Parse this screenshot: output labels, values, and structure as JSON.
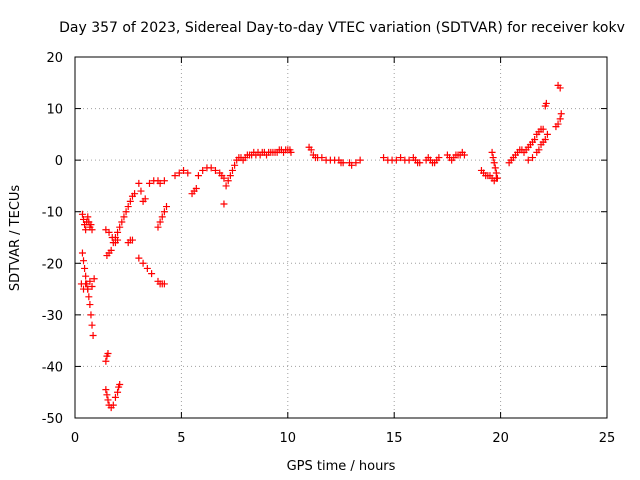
{
  "chart_data": {
    "type": "scatter",
    "title": "Day 357 of 2023, Sidereal Day-to-day VTEC variation (SDTVAR) for receiver kokv",
    "xlabel": "GPS time / hours",
    "ylabel": "SDTVAR / TECUs",
    "xlim": [
      0,
      25
    ],
    "ylim": [
      -50,
      20
    ],
    "xticks": [
      0,
      5,
      10,
      15,
      20,
      25
    ],
    "yticks": [
      -50,
      -40,
      -30,
      -20,
      -10,
      0,
      10,
      20
    ],
    "xtick_labels": [
      "0",
      "5",
      "10",
      "15",
      "20",
      "25"
    ],
    "ytick_labels": [
      "-50",
      "-40",
      "-30",
      "-20",
      "-10",
      "0",
      "10",
      "20"
    ],
    "grid": true,
    "marker": "+",
    "color": "#ff0000",
    "series": [
      {
        "name": "SDTVAR",
        "points": [
          [
            0.35,
            -10.5
          ],
          [
            0.4,
            -11.5
          ],
          [
            0.45,
            -12.5
          ],
          [
            0.5,
            -13.5
          ],
          [
            0.55,
            -12
          ],
          [
            0.6,
            -11
          ],
          [
            0.65,
            -12
          ],
          [
            0.7,
            -13
          ],
          [
            0.75,
            -12.5
          ],
          [
            0.8,
            -13.5
          ],
          [
            0.35,
            -18
          ],
          [
            0.4,
            -19.5
          ],
          [
            0.45,
            -21
          ],
          [
            0.5,
            -22.5
          ],
          [
            0.55,
            -24
          ],
          [
            0.6,
            -25
          ],
          [
            0.65,
            -26.5
          ],
          [
            0.7,
            -28
          ],
          [
            0.75,
            -30
          ],
          [
            0.8,
            -32
          ],
          [
            0.85,
            -34
          ],
          [
            0.3,
            -24
          ],
          [
            0.4,
            -25
          ],
          [
            0.5,
            -24
          ],
          [
            0.6,
            -25
          ],
          [
            0.7,
            -23.5
          ],
          [
            0.8,
            -24.5
          ],
          [
            0.9,
            -23
          ],
          [
            1.45,
            -39
          ],
          [
            1.5,
            -38
          ],
          [
            1.55,
            -37.5
          ],
          [
            1.45,
            -44.5
          ],
          [
            1.5,
            -45.5
          ],
          [
            1.55,
            -46.5
          ],
          [
            1.6,
            -47.5
          ],
          [
            1.7,
            -48
          ],
          [
            1.8,
            -47.5
          ],
          [
            1.9,
            -46
          ],
          [
            2.0,
            -45
          ],
          [
            2.05,
            -44
          ],
          [
            2.1,
            -43.5
          ],
          [
            1.5,
            -18.5
          ],
          [
            1.6,
            -18
          ],
          [
            1.7,
            -17.5
          ],
          [
            1.8,
            -16
          ],
          [
            1.9,
            -15
          ],
          [
            2.0,
            -14
          ],
          [
            2.1,
            -13
          ],
          [
            2.2,
            -12
          ],
          [
            2.3,
            -11
          ],
          [
            2.4,
            -10
          ],
          [
            2.5,
            -9
          ],
          [
            2.6,
            -8
          ],
          [
            2.7,
            -7
          ],
          [
            2.8,
            -6.5
          ],
          [
            1.45,
            -13.5
          ],
          [
            1.6,
            -14
          ],
          [
            1.75,
            -15
          ],
          [
            1.9,
            -16
          ],
          [
            2.0,
            -15.5
          ],
          [
            2.5,
            -16
          ],
          [
            2.6,
            -15.5
          ],
          [
            2.7,
            -15.5
          ],
          [
            3.0,
            -19
          ],
          [
            3.2,
            -20
          ],
          [
            3.4,
            -21
          ],
          [
            3.6,
            -22
          ],
          [
            3.0,
            -4.5
          ],
          [
            3.1,
            -6
          ],
          [
            3.2,
            -8
          ],
          [
            3.3,
            -7.5
          ],
          [
            3.5,
            -4.5
          ],
          [
            3.7,
            -4
          ],
          [
            3.9,
            -4
          ],
          [
            4.0,
            -4.5
          ],
          [
            4.2,
            -4
          ],
          [
            3.9,
            -13
          ],
          [
            4.0,
            -12
          ],
          [
            4.1,
            -11
          ],
          [
            4.2,
            -10
          ],
          [
            4.3,
            -9
          ],
          [
            3.9,
            -23.5
          ],
          [
            4.0,
            -24
          ],
          [
            4.1,
            -24
          ],
          [
            4.2,
            -24
          ],
          [
            4.7,
            -3
          ],
          [
            4.9,
            -2.5
          ],
          [
            5.1,
            -2
          ],
          [
            5.3,
            -2.5
          ],
          [
            5.5,
            -6.5
          ],
          [
            5.6,
            -6
          ],
          [
            5.7,
            -5.5
          ],
          [
            5.8,
            -3
          ],
          [
            6.0,
            -2
          ],
          [
            6.2,
            -1.5
          ],
          [
            6.4,
            -1.5
          ],
          [
            6.6,
            -2
          ],
          [
            6.8,
            -2.5
          ],
          [
            6.9,
            -3
          ],
          [
            7.0,
            -3.5
          ],
          [
            7.0,
            -8.5
          ],
          [
            7.1,
            -5
          ],
          [
            7.2,
            -4
          ],
          [
            7.3,
            -3
          ],
          [
            7.4,
            -2
          ],
          [
            7.5,
            -1
          ],
          [
            7.6,
            0
          ],
          [
            7.7,
            0.5
          ],
          [
            7.8,
            0.5
          ],
          [
            7.9,
            0
          ],
          [
            8.0,
            0.5
          ],
          [
            8.1,
            1
          ],
          [
            8.2,
            1
          ],
          [
            8.3,
            1
          ],
          [
            8.4,
            1.5
          ],
          [
            8.5,
            1
          ],
          [
            8.6,
            1.5
          ],
          [
            8.7,
            1
          ],
          [
            8.8,
            1.5
          ],
          [
            8.9,
            1.5
          ],
          [
            9.0,
            1
          ],
          [
            9.1,
            1.5
          ],
          [
            9.2,
            1.5
          ],
          [
            9.3,
            1.5
          ],
          [
            9.4,
            1.5
          ],
          [
            9.5,
            1.5
          ],
          [
            9.6,
            2
          ],
          [
            9.7,
            2
          ],
          [
            9.8,
            1.5
          ],
          [
            9.9,
            2
          ],
          [
            10.0,
            2
          ],
          [
            10.1,
            2
          ],
          [
            10.15,
            1.5
          ],
          [
            11.0,
            2.5
          ],
          [
            11.1,
            2
          ],
          [
            11.2,
            1
          ],
          [
            11.3,
            0.5
          ],
          [
            11.4,
            0.5
          ],
          [
            11.6,
            0.5
          ],
          [
            11.8,
            0
          ],
          [
            12.0,
            0
          ],
          [
            12.2,
            0
          ],
          [
            12.4,
            0
          ],
          [
            12.5,
            -0.5
          ],
          [
            12.6,
            -0.5
          ],
          [
            12.9,
            -0.5
          ],
          [
            13.0,
            -1
          ],
          [
            13.2,
            -0.5
          ],
          [
            13.4,
            0
          ],
          [
            14.5,
            0.5
          ],
          [
            14.7,
            0
          ],
          [
            14.9,
            0
          ],
          [
            15.1,
            0
          ],
          [
            15.3,
            0.5
          ],
          [
            15.5,
            0
          ],
          [
            15.7,
            0
          ],
          [
            15.9,
            0.5
          ],
          [
            16.0,
            0
          ],
          [
            16.1,
            -0.5
          ],
          [
            16.2,
            -0.5
          ],
          [
            16.5,
            0
          ],
          [
            16.6,
            0.5
          ],
          [
            16.7,
            0
          ],
          [
            16.8,
            -0.5
          ],
          [
            16.9,
            -0.5
          ],
          [
            17.0,
            0
          ],
          [
            17.1,
            0.5
          ],
          [
            17.5,
            1
          ],
          [
            17.6,
            0.5
          ],
          [
            17.7,
            0
          ],
          [
            17.8,
            0.5
          ],
          [
            17.9,
            1
          ],
          [
            18.0,
            1
          ],
          [
            18.1,
            1
          ],
          [
            18.2,
            1.5
          ],
          [
            18.3,
            1
          ],
          [
            19.1,
            -2
          ],
          [
            19.2,
            -2.5
          ],
          [
            19.3,
            -3
          ],
          [
            19.4,
            -3
          ],
          [
            19.5,
            -3
          ],
          [
            19.6,
            -3.5
          ],
          [
            19.7,
            -4
          ],
          [
            19.8,
            -3.5
          ],
          [
            19.6,
            1.5
          ],
          [
            19.65,
            0.5
          ],
          [
            19.7,
            -0.5
          ],
          [
            19.75,
            -1.5
          ],
          [
            19.8,
            -2.5
          ],
          [
            19.85,
            -3.5
          ],
          [
            20.4,
            -0.5
          ],
          [
            20.5,
            0
          ],
          [
            20.6,
            0.5
          ],
          [
            20.7,
            1
          ],
          [
            20.8,
            1.5
          ],
          [
            20.9,
            2
          ],
          [
            21.0,
            2
          ],
          [
            21.1,
            1.5
          ],
          [
            21.2,
            2
          ],
          [
            21.3,
            2.5
          ],
          [
            21.4,
            3
          ],
          [
            21.5,
            3.5
          ],
          [
            21.6,
            4
          ],
          [
            21.7,
            5
          ],
          [
            21.8,
            5.5
          ],
          [
            21.9,
            6
          ],
          [
            22.0,
            6
          ],
          [
            21.3,
            0
          ],
          [
            21.5,
            0.5
          ],
          [
            21.7,
            1.5
          ],
          [
            21.8,
            2
          ],
          [
            21.9,
            3
          ],
          [
            22.0,
            3.5
          ],
          [
            22.1,
            4
          ],
          [
            22.2,
            5
          ],
          [
            22.1,
            10.5
          ],
          [
            22.15,
            11
          ],
          [
            22.6,
            6.5
          ],
          [
            22.7,
            7
          ],
          [
            22.8,
            8
          ],
          [
            22.85,
            9
          ],
          [
            22.7,
            14.5
          ],
          [
            22.8,
            14
          ]
        ]
      }
    ]
  }
}
